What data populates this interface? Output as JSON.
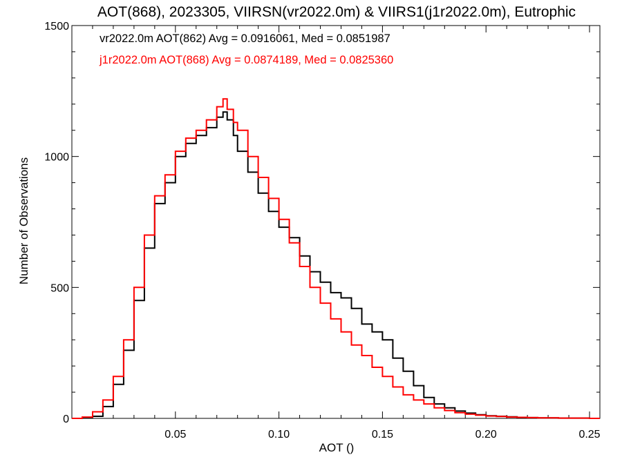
{
  "chart_data": {
    "type": "line",
    "title": "AOT(868), 2023305, VIIRSN(vr2022.0m) & VIIRS1(j1r2022.0m), Eutrophic",
    "xlabel": "AOT ()",
    "ylabel": "Number of Observations",
    "xlim": [
      0.0,
      0.255
    ],
    "ylim": [
      0,
      1500
    ],
    "grid": false,
    "legend_placement": "top-left",
    "x_ticks": [
      {
        "value": 0.05,
        "label": "0.05"
      },
      {
        "value": 0.1,
        "label": "0.10"
      },
      {
        "value": 0.15,
        "label": "0.15"
      },
      {
        "value": 0.2,
        "label": "0.20"
      },
      {
        "value": 0.25,
        "label": "0.25"
      }
    ],
    "y_ticks": [
      {
        "value": 0,
        "label": "0"
      },
      {
        "value": 500,
        "label": "500"
      },
      {
        "value": 1000,
        "label": "1000"
      },
      {
        "value": 1500,
        "label": "1500"
      }
    ],
    "series": [
      {
        "stats_text": "vr2022.0m AOT(862) Avg = 0.0916061, Med = 0.0851987",
        "color": "#000000",
        "x": [
          0.0,
          0.005,
          0.01,
          0.015,
          0.02,
          0.025,
          0.03,
          0.035,
          0.04,
          0.045,
          0.05,
          0.055,
          0.06,
          0.065,
          0.07,
          0.073,
          0.075,
          0.078,
          0.08,
          0.085,
          0.09,
          0.095,
          0.1,
          0.105,
          0.11,
          0.115,
          0.12,
          0.125,
          0.13,
          0.135,
          0.14,
          0.145,
          0.15,
          0.155,
          0.16,
          0.165,
          0.17,
          0.175,
          0.18,
          0.185,
          0.19,
          0.195,
          0.2,
          0.205,
          0.21,
          0.215,
          0.22,
          0.225,
          0.23,
          0.235,
          0.24,
          0.245,
          0.25,
          0.255
        ],
        "y": [
          0,
          2,
          8,
          45,
          130,
          260,
          450,
          650,
          820,
          900,
          1000,
          1050,
          1080,
          1110,
          1150,
          1170,
          1140,
          1080,
          1020,
          940,
          860,
          790,
          730,
          690,
          620,
          560,
          520,
          480,
          460,
          420,
          360,
          330,
          300,
          230,
          180,
          125,
          80,
          55,
          40,
          28,
          20,
          14,
          10,
          8,
          6,
          4,
          3,
          2,
          2,
          1,
          1,
          1,
          0,
          0
        ]
      },
      {
        "stats_text": "j1r2022.0m AOT(868) Avg = 0.0874189, Med = 0.0825360",
        "color": "#ff0000",
        "x": [
          0.0,
          0.005,
          0.01,
          0.015,
          0.02,
          0.025,
          0.03,
          0.035,
          0.04,
          0.045,
          0.05,
          0.055,
          0.06,
          0.065,
          0.07,
          0.073,
          0.075,
          0.078,
          0.08,
          0.085,
          0.09,
          0.095,
          0.1,
          0.105,
          0.11,
          0.115,
          0.12,
          0.125,
          0.13,
          0.135,
          0.14,
          0.145,
          0.15,
          0.155,
          0.16,
          0.165,
          0.17,
          0.175,
          0.18,
          0.185,
          0.19,
          0.195,
          0.2,
          0.205,
          0.21,
          0.215,
          0.22,
          0.225,
          0.23,
          0.235,
          0.24,
          0.245,
          0.25,
          0.255
        ],
        "y": [
          0,
          5,
          25,
          70,
          160,
          300,
          500,
          700,
          850,
          930,
          1020,
          1070,
          1100,
          1140,
          1190,
          1220,
          1180,
          1130,
          1100,
          1000,
          920,
          840,
          760,
          670,
          580,
          500,
          440,
          380,
          330,
          280,
          240,
          195,
          160,
          120,
          90,
          70,
          55,
          40,
          30,
          22,
          16,
          12,
          9,
          7,
          5,
          4,
          3,
          2,
          2,
          1,
          1,
          1,
          0,
          0
        ]
      }
    ]
  }
}
